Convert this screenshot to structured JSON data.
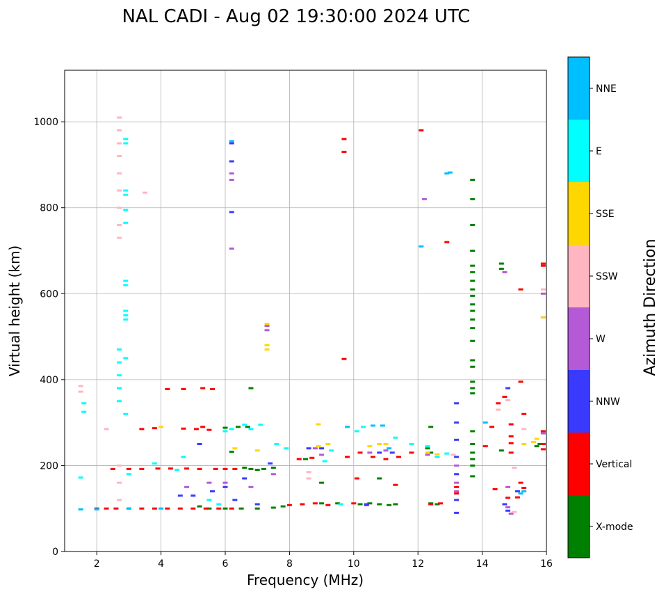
{
  "chart_data": {
    "type": "scatter",
    "title": "NAL CADI - Aug 02 19:30:00 2024 UTC",
    "xlabel": "Frequency (MHz)",
    "ylabel": "Virtual height (km)",
    "xlim": [
      1,
      16
    ],
    "ylim": [
      0,
      1120
    ],
    "xticks": [
      2,
      4,
      6,
      8,
      10,
      12,
      14,
      16
    ],
    "yticks": [
      0,
      200,
      400,
      600,
      800,
      1000
    ],
    "grid": true,
    "colorbar": {
      "title": "Azimuth Direction",
      "categories": [
        {
          "name": "X-mode",
          "color": "#008000"
        },
        {
          "name": "Vertical",
          "color": "#ff0000"
        },
        {
          "name": "NNW",
          "color": "#3a3aff"
        },
        {
          "name": "W",
          "color": "#b45ad6"
        },
        {
          "name": "SSW",
          "color": "#ffb6c1"
        },
        {
          "name": "SSE",
          "color": "#ffd700"
        },
        {
          "name": "E",
          "color": "#00ffff"
        },
        {
          "name": "NNE",
          "color": "#00bfff"
        }
      ]
    },
    "series": [
      {
        "name": "X-mode",
        "points": [
          [
            7.0,
            190
          ],
          [
            7.2,
            192
          ],
          [
            7.5,
            195
          ],
          [
            6.6,
            195
          ],
          [
            6.8,
            192
          ],
          [
            6.0,
            288
          ],
          [
            6.4,
            290
          ],
          [
            6.7,
            290
          ],
          [
            6.8,
            380
          ],
          [
            5.2,
            105
          ],
          [
            5.5,
            100
          ],
          [
            6.0,
            100
          ],
          [
            6.5,
            100
          ],
          [
            7.0,
            100
          ],
          [
            7.5,
            102
          ],
          [
            7.8,
            105
          ],
          [
            9.0,
            112
          ],
          [
            9.5,
            112
          ],
          [
            10.2,
            110
          ],
          [
            10.5,
            112
          ],
          [
            10.8,
            110
          ],
          [
            11.1,
            108
          ],
          [
            11.3,
            110
          ],
          [
            12.4,
            112
          ],
          [
            12.6,
            110
          ],
          [
            12.4,
            290
          ],
          [
            12.3,
            240
          ],
          [
            13.7,
            865
          ],
          [
            13.7,
            820
          ],
          [
            13.7,
            760
          ],
          [
            13.7,
            700
          ],
          [
            13.7,
            665
          ],
          [
            13.7,
            650
          ],
          [
            13.7,
            630
          ],
          [
            13.7,
            610
          ],
          [
            13.7,
            595
          ],
          [
            13.7,
            575
          ],
          [
            13.7,
            560
          ],
          [
            13.7,
            540
          ],
          [
            13.7,
            520
          ],
          [
            13.7,
            490
          ],
          [
            13.7,
            445
          ],
          [
            13.7,
            430
          ],
          [
            13.7,
            395
          ],
          [
            13.7,
            380
          ],
          [
            13.7,
            368
          ],
          [
            13.7,
            280
          ],
          [
            13.7,
            250
          ],
          [
            13.7,
            230
          ],
          [
            13.7,
            215
          ],
          [
            13.7,
            200
          ],
          [
            13.7,
            175
          ],
          [
            14.6,
            670
          ],
          [
            14.6,
            658
          ],
          [
            15.8,
            250
          ],
          [
            15.7,
            245
          ],
          [
            14.6,
            235
          ],
          [
            9.0,
            160
          ],
          [
            8.5,
            215
          ],
          [
            6.2,
            232
          ],
          [
            10.8,
            170
          ],
          [
            12.4,
            230
          ]
        ]
      },
      {
        "name": "Vertical",
        "points": [
          [
            2.0,
            100
          ],
          [
            2.3,
            100
          ],
          [
            2.6,
            100
          ],
          [
            3.0,
            100
          ],
          [
            3.4,
            100
          ],
          [
            3.8,
            100
          ],
          [
            4.2,
            100
          ],
          [
            4.6,
            100
          ],
          [
            5.0,
            100
          ],
          [
            5.4,
            100
          ],
          [
            5.8,
            100
          ],
          [
            6.2,
            100
          ],
          [
            3.4,
            285
          ],
          [
            3.8,
            287
          ],
          [
            4.7,
            286
          ],
          [
            5.1,
            285
          ],
          [
            5.5,
            283
          ],
          [
            5.3,
            290
          ],
          [
            2.5,
            192
          ],
          [
            3.0,
            192
          ],
          [
            3.4,
            192
          ],
          [
            3.9,
            193
          ],
          [
            4.3,
            193
          ],
          [
            4.8,
            193
          ],
          [
            5.2,
            192
          ],
          [
            5.7,
            192
          ],
          [
            6.0,
            192
          ],
          [
            6.3,
            192
          ],
          [
            4.2,
            378
          ],
          [
            4.7,
            378
          ],
          [
            5.3,
            380
          ],
          [
            5.6,
            378
          ],
          [
            8.0,
            108
          ],
          [
            8.4,
            110
          ],
          [
            8.8,
            112
          ],
          [
            9.2,
            108
          ],
          [
            10.0,
            112
          ],
          [
            10.4,
            108
          ],
          [
            8.3,
            215
          ],
          [
            8.7,
            218
          ],
          [
            9.8,
            220
          ],
          [
            10.2,
            230
          ],
          [
            10.6,
            220
          ],
          [
            11.0,
            215
          ],
          [
            11.4,
            220
          ],
          [
            11.8,
            230
          ],
          [
            9.7,
            960
          ],
          [
            9.7,
            930
          ],
          [
            9.7,
            448
          ],
          [
            12.1,
            980
          ],
          [
            12.9,
            720
          ],
          [
            14.1,
            245
          ],
          [
            14.3,
            290
          ],
          [
            14.5,
            345
          ],
          [
            14.7,
            360
          ],
          [
            14.9,
            296
          ],
          [
            14.9,
            268
          ],
          [
            14.9,
            252
          ],
          [
            14.9,
            230
          ],
          [
            15.2,
            395
          ],
          [
            15.3,
            320
          ],
          [
            15.2,
            160
          ],
          [
            15.3,
            148
          ],
          [
            15.9,
            280
          ],
          [
            15.9,
            238
          ],
          [
            15.9,
            250
          ],
          [
            15.2,
            610
          ],
          [
            15.9,
            670
          ],
          [
            15.9,
            665
          ],
          [
            14.4,
            145
          ],
          [
            14.8,
            125
          ],
          [
            15.1,
            126
          ],
          [
            10.1,
            170
          ],
          [
            11.3,
            155
          ],
          [
            12.4,
            110
          ],
          [
            12.7,
            112
          ],
          [
            13.2,
            150
          ],
          [
            13.2,
            135
          ]
        ]
      },
      {
        "name": "NNW",
        "points": [
          [
            6.2,
            950
          ],
          [
            6.2,
            908
          ],
          [
            6.2,
            790
          ],
          [
            13.2,
            345
          ],
          [
            13.2,
            300
          ],
          [
            13.2,
            260
          ],
          [
            13.2,
            220
          ],
          [
            13.2,
            180
          ],
          [
            13.2,
            120
          ],
          [
            13.2,
            90
          ],
          [
            4.6,
            130
          ],
          [
            5.0,
            130
          ],
          [
            5.6,
            140
          ],
          [
            6.0,
            150
          ],
          [
            6.3,
            120
          ],
          [
            7.0,
            110
          ],
          [
            14.8,
            95
          ],
          [
            14.8,
            380
          ],
          [
            10.8,
            230
          ],
          [
            11.2,
            230
          ],
          [
            9.0,
            240
          ],
          [
            8.6,
            240
          ],
          [
            5.2,
            250
          ],
          [
            7.4,
            205
          ],
          [
            6.6,
            170
          ],
          [
            10.4,
            110
          ],
          [
            14.7,
            110
          ],
          [
            15.1,
            140
          ]
        ]
      },
      {
        "name": "W",
        "points": [
          [
            6.2,
            880
          ],
          [
            6.2,
            865
          ],
          [
            6.2,
            705
          ],
          [
            7.3,
            525
          ],
          [
            7.3,
            515
          ],
          [
            12.2,
            820
          ],
          [
            13.2,
            200
          ],
          [
            13.2,
            160
          ],
          [
            13.2,
            140
          ],
          [
            14.7,
            650
          ],
          [
            15.9,
            600
          ],
          [
            15.9,
            545
          ],
          [
            9.0,
            225
          ],
          [
            8.8,
            240
          ],
          [
            10.5,
            230
          ],
          [
            11.0,
            235
          ],
          [
            12.3,
            225
          ],
          [
            5.5,
            160
          ],
          [
            6.0,
            160
          ],
          [
            6.8,
            150
          ],
          [
            7.5,
            180
          ],
          [
            4.8,
            150
          ],
          [
            14.8,
            103
          ],
          [
            14.8,
            150
          ],
          [
            14.9,
            88
          ],
          [
            15.9,
            275
          ]
        ]
      },
      {
        "name": "SSW",
        "points": [
          [
            2.7,
            1010
          ],
          [
            2.7,
            980
          ],
          [
            2.7,
            950
          ],
          [
            2.7,
            920
          ],
          [
            2.7,
            880
          ],
          [
            2.7,
            840
          ],
          [
            2.7,
            800
          ],
          [
            2.7,
            760
          ],
          [
            2.7,
            730
          ],
          [
            1.5,
            372
          ],
          [
            1.5,
            385
          ],
          [
            2.3,
            285
          ],
          [
            3.5,
            835
          ],
          [
            8.6,
            185
          ],
          [
            8.6,
            170
          ],
          [
            13.1,
            225
          ],
          [
            14.5,
            330
          ],
          [
            14.8,
            352
          ],
          [
            15.0,
            195
          ],
          [
            15.0,
            92
          ],
          [
            15.3,
            285
          ],
          [
            15.9,
            610
          ],
          [
            2.7,
            200
          ],
          [
            2.7,
            160
          ],
          [
            2.7,
            120
          ]
        ]
      },
      {
        "name": "SSE",
        "points": [
          [
            7.3,
            530
          ],
          [
            7.3,
            480
          ],
          [
            7.3,
            470
          ],
          [
            8.9,
            296
          ],
          [
            8.9,
            245
          ],
          [
            9.2,
            250
          ],
          [
            10.5,
            245
          ],
          [
            10.8,
            250
          ],
          [
            11.0,
            250
          ],
          [
            12.3,
            230
          ],
          [
            12.6,
            226
          ],
          [
            15.9,
            545
          ],
          [
            15.6,
            255
          ],
          [
            15.7,
            262
          ],
          [
            15.3,
            250
          ],
          [
            4.0,
            290
          ],
          [
            6.3,
            240
          ],
          [
            7.0,
            235
          ]
        ]
      },
      {
        "name": "E",
        "points": [
          [
            2.7,
            470
          ],
          [
            2.7,
            440
          ],
          [
            2.7,
            410
          ],
          [
            2.7,
            380
          ],
          [
            2.7,
            350
          ],
          [
            2.9,
            960
          ],
          [
            2.9,
            950
          ],
          [
            2.9,
            840
          ],
          [
            2.9,
            830
          ],
          [
            2.9,
            795
          ],
          [
            2.9,
            765
          ],
          [
            2.9,
            630
          ],
          [
            2.9,
            620
          ],
          [
            2.9,
            560
          ],
          [
            2.9,
            550
          ],
          [
            2.9,
            540
          ],
          [
            2.9,
            450
          ],
          [
            2.9,
            320
          ],
          [
            1.6,
            345
          ],
          [
            1.6,
            325
          ],
          [
            1.5,
            172
          ],
          [
            3.0,
            180
          ],
          [
            3.8,
            205
          ],
          [
            4.5,
            190
          ],
          [
            4.7,
            220
          ],
          [
            5.5,
            120
          ],
          [
            5.8,
            110
          ],
          [
            6.0,
            280
          ],
          [
            6.2,
            285
          ],
          [
            6.6,
            295
          ],
          [
            6.8,
            285
          ],
          [
            7.1,
            295
          ],
          [
            7.6,
            250
          ],
          [
            7.9,
            240
          ],
          [
            9.1,
            210
          ],
          [
            9.3,
            235
          ],
          [
            9.6,
            110
          ],
          [
            10.1,
            280
          ],
          [
            10.3,
            290
          ],
          [
            11.3,
            265
          ],
          [
            11.8,
            250
          ],
          [
            12.3,
            245
          ],
          [
            12.6,
            220
          ],
          [
            12.9,
            228
          ]
        ]
      },
      {
        "name": "NNE",
        "points": [
          [
            6.2,
            955
          ],
          [
            12.1,
            710
          ],
          [
            12.9,
            880
          ],
          [
            13.0,
            882
          ],
          [
            14.1,
            300
          ],
          [
            15.2,
            135
          ],
          [
            15.3,
            140
          ],
          [
            9.8,
            290
          ],
          [
            10.6,
            293
          ],
          [
            10.9,
            293
          ],
          [
            11.1,
            240
          ],
          [
            3.0,
            100
          ],
          [
            4.0,
            100
          ],
          [
            2.0,
            98
          ],
          [
            1.5,
            98
          ]
        ]
      }
    ]
  }
}
